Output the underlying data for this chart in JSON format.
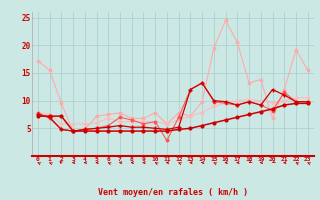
{
  "xlabel": "Vent moyen/en rafales ( km/h )",
  "bg_color": "#cce8e4",
  "grid_color": "#aacccc",
  "x": [
    0,
    1,
    2,
    3,
    4,
    5,
    6,
    7,
    8,
    9,
    10,
    11,
    12,
    13,
    14,
    15,
    16,
    17,
    18,
    19,
    20,
    21,
    22,
    23
  ],
  "line_dark1": [
    7.2,
    7.2,
    7.2,
    4.5,
    4.5,
    4.5,
    4.5,
    4.5,
    4.5,
    4.5,
    4.5,
    4.5,
    4.8,
    5.0,
    5.5,
    6.0,
    6.5,
    7.0,
    7.5,
    8.0,
    8.5,
    9.2,
    9.5,
    9.5
  ],
  "line_dark2": [
    7.5,
    7.0,
    4.8,
    4.5,
    4.8,
    5.0,
    5.2,
    5.5,
    5.2,
    5.2,
    5.0,
    4.8,
    5.2,
    12.0,
    13.2,
    10.0,
    9.8,
    9.2,
    9.8,
    9.2,
    12.0,
    11.0,
    9.8,
    9.8
  ],
  "line_med1": [
    7.8,
    6.8,
    4.8,
    4.5,
    4.8,
    5.0,
    5.5,
    7.0,
    6.5,
    5.8,
    6.2,
    2.8,
    7.0,
    12.0,
    13.2,
    9.8,
    9.5,
    9.2,
    9.8,
    9.2,
    8.2,
    11.5,
    9.8,
    9.8
  ],
  "line_light1": [
    17.2,
    15.5,
    9.5,
    4.5,
    4.8,
    7.2,
    7.5,
    7.8,
    6.8,
    6.8,
    7.8,
    5.8,
    7.8,
    7.2,
    9.8,
    19.5,
    24.5,
    20.5,
    13.2,
    13.8,
    6.8,
    12.0,
    19.2,
    15.5
  ],
  "line_light2": [
    7.8,
    7.5,
    5.8,
    5.8,
    5.8,
    6.0,
    6.8,
    6.2,
    6.2,
    6.2,
    6.2,
    5.8,
    6.5,
    7.2,
    7.8,
    9.0,
    9.5,
    10.0,
    10.2,
    10.0,
    9.5,
    10.0,
    10.5,
    10.5
  ],
  "color_dark": "#cc0000",
  "color_dark2": "#cc0000",
  "color_med": "#ff5555",
  "color_light": "#ffaaaa",
  "color_light2": "#ffbbbb",
  "ylim": [
    0,
    26
  ],
  "yticks": [
    0,
    5,
    10,
    15,
    20,
    25
  ],
  "xticks": [
    0,
    1,
    2,
    3,
    4,
    5,
    6,
    7,
    8,
    9,
    10,
    11,
    12,
    13,
    14,
    15,
    16,
    17,
    18,
    19,
    20,
    21,
    22,
    23
  ],
  "arrow_angles": [
    225,
    225,
    210,
    270,
    270,
    270,
    225,
    270,
    270,
    270,
    225,
    270,
    225,
    270,
    270,
    225,
    270,
    270,
    315,
    270,
    315,
    270,
    225,
    225
  ]
}
